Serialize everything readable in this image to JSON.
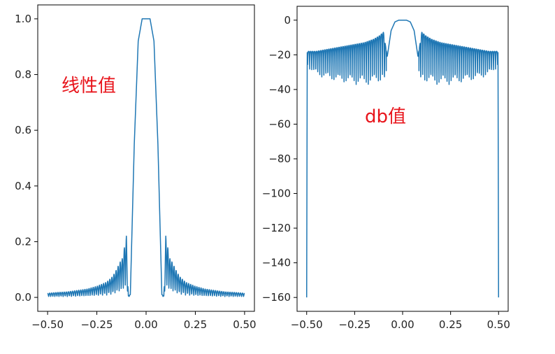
{
  "chart_data": [
    {
      "type": "line",
      "title": "",
      "xlabel": "",
      "ylabel": "",
      "annotation": "线性值",
      "xlim": [
        -0.55,
        0.55
      ],
      "ylim": [
        -0.05,
        1.05
      ],
      "xticks": [
        -0.5,
        -0.25,
        0,
        0.25,
        0.5
      ],
      "xtick_labels": [
        "−0.50",
        "−0.25",
        "0.00",
        "0.25",
        "0.50"
      ],
      "yticks": [
        0,
        0.2,
        0.4,
        0.6,
        0.8,
        1.0
      ],
      "ytick_labels": [
        "0.0",
        "0.2",
        "0.4",
        "0.6",
        "0.8",
        "1.0"
      ],
      "grid": false,
      "color": "#1f77b4",
      "series": [
        {
          "x": [
            -0.5,
            -0.45,
            -0.4,
            -0.35,
            -0.3,
            -0.25,
            -0.2,
            -0.17,
            -0.15,
            -0.13,
            -0.12,
            -0.1,
            -0.09,
            -0.08,
            -0.06,
            -0.04,
            -0.02,
            0,
            0.02,
            0.04,
            0.06,
            0.08,
            0.09,
            0.1,
            0.12,
            0.13,
            0.15,
            0.17,
            0.2,
            0.25,
            0.3,
            0.35,
            0.4,
            0.45,
            0.5
          ],
          "y": [
            0.015,
            0.018,
            0.02,
            0.025,
            0.03,
            0.04,
            0.055,
            0.075,
            0.1,
            0.13,
            0.14,
            0.22,
            0.005,
            0.01,
            0.55,
            0.92,
            1.0,
            1.0,
            1.0,
            0.92,
            0.55,
            0.01,
            0.005,
            0.22,
            0.14,
            0.13,
            0.1,
            0.075,
            0.055,
            0.04,
            0.03,
            0.025,
            0.02,
            0.018,
            0.015
          ]
        }
      ]
    },
    {
      "type": "line",
      "title": "",
      "xlabel": "",
      "ylabel": "",
      "annotation": "db值",
      "xlim": [
        -0.55,
        0.55
      ],
      "ylim": [
        -168,
        8
      ],
      "xticks": [
        -0.5,
        -0.25,
        0,
        0.25,
        0.5
      ],
      "xtick_labels": [
        "−0.50",
        "−0.25",
        "0.00",
        "0.25",
        "0.50"
      ],
      "yticks": [
        0,
        -20,
        -40,
        -60,
        -80,
        -100,
        -120,
        -140,
        -160
      ],
      "ytick_labels": [
        "0",
        "−20",
        "−40",
        "−60",
        "−80",
        "−100",
        "−120",
        "−140",
        "−160"
      ],
      "grid": false,
      "color": "#1f77b4",
      "envelope_db": {
        "x": [
          -0.5,
          -0.45,
          -0.4,
          -0.35,
          -0.3,
          -0.25,
          -0.2,
          -0.15,
          -0.12,
          -0.1,
          -0.08,
          -0.06,
          -0.04,
          -0.02,
          0,
          0.02,
          0.04,
          0.06,
          0.08,
          0.1,
          0.12,
          0.15,
          0.2,
          0.25,
          0.3,
          0.35,
          0.4,
          0.45,
          0.5
        ],
        "y": [
          -18,
          -18,
          -17,
          -16,
          -15,
          -14,
          -13,
          -11,
          -9,
          -7,
          -21,
          -6,
          -1,
          0,
          0,
          0,
          -1,
          -6,
          -21,
          -7,
          -9,
          -11,
          -13,
          -14,
          -15,
          -16,
          -17,
          -18,
          -18
        ]
      },
      "edge_min_db": -160
    }
  ]
}
